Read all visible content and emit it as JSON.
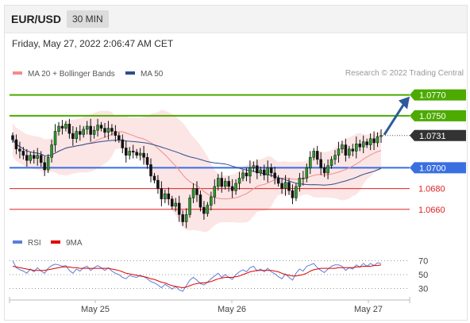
{
  "header": {
    "pair": "EUR/USD",
    "timeframe": "30 MIN"
  },
  "datetime": "Friday, May 27, 2022 2:06:47 AM CET",
  "legend_main": [
    {
      "name": "MA 20 + Bollinger Bands",
      "color": "#f28c8c"
    },
    {
      "name": "MA 50",
      "color": "#2b4f8c"
    }
  ],
  "copyright": "Research © 2022 Trading Central",
  "legend_rsi": [
    {
      "name": "RSI",
      "color": "#5b7fd6"
    },
    {
      "name": "9MA",
      "color": "#e00000"
    }
  ],
  "chart_data": [
    {
      "type": "candlestick",
      "x_tick_labels": [
        "May 25",
        "May 26",
        "May 27"
      ],
      "ylim": [
        1.064,
        1.0785
      ],
      "current_price": {
        "value": 1.0731,
        "label": "1.0731",
        "color": "#333333"
      },
      "levels": [
        {
          "value": 1.077,
          "label": "1.0770",
          "role": "resistance",
          "color": "#4caa00"
        },
        {
          "value": 1.075,
          "label": "1.0750",
          "role": "resistance",
          "color": "#4caa00"
        },
        {
          "value": 1.07,
          "label": "1.0700",
          "role": "pivot",
          "color": "#3a6fe0"
        },
        {
          "value": 1.068,
          "label": "1.0680",
          "role": "support",
          "color": "#e02020"
        },
        {
          "value": 1.066,
          "label": "1.0660",
          "role": "support",
          "color": "#e02020"
        }
      ],
      "forecast_arrow": {
        "from": 1.0731,
        "to": 1.077,
        "color": "#2b5b9c"
      },
      "close": [
        1.0727,
        1.0718,
        1.0716,
        1.0712,
        1.0707,
        1.0712,
        1.0709,
        1.0712,
        1.0705,
        1.0698,
        1.071,
        1.0722,
        1.0735,
        1.074,
        1.0738,
        1.0742,
        1.0733,
        1.0728,
        1.0735,
        1.0732,
        1.0737,
        1.074,
        1.0732,
        1.0736,
        1.0741,
        1.0738,
        1.0734,
        1.0738,
        1.0735,
        1.0731,
        1.0727,
        1.0719,
        1.0712,
        1.0716,
        1.0715,
        1.0712,
        1.0714,
        1.071,
        1.0703,
        1.0692,
        1.0688,
        1.068,
        1.067,
        1.0675,
        1.067,
        1.0663,
        1.0666,
        1.0655,
        1.0648,
        1.0655,
        1.0671,
        1.068,
        1.0674,
        1.0662,
        1.0656,
        1.0664,
        1.0672,
        1.0682,
        1.069,
        1.0682,
        1.0687,
        1.0682,
        1.0678,
        1.0685,
        1.069,
        1.0695,
        1.0692,
        1.07,
        1.0702,
        1.0695,
        1.0698,
        1.0693,
        1.07,
        1.0695,
        1.069,
        1.0685,
        1.068,
        1.0686,
        1.0678,
        1.0671,
        1.0682,
        1.069,
        1.069,
        1.07,
        1.071,
        1.0716,
        1.0708,
        1.07,
        1.0695,
        1.0702,
        1.0708,
        1.0712,
        1.0718,
        1.0722,
        1.0712,
        1.0718,
        1.0716,
        1.0723,
        1.072,
        1.0725,
        1.0722,
        1.0728,
        1.0724,
        1.073,
        1.0731
      ]
    },
    {
      "type": "line",
      "x_tick_labels": [
        "May 25",
        "May 26",
        "May 27"
      ],
      "y_ticks": [
        70,
        50,
        30
      ],
      "ylim": [
        18,
        82
      ],
      "series": [
        {
          "name": "RSI",
          "values": [
            70,
            60,
            57,
            55,
            52,
            58,
            54,
            60,
            55,
            52,
            59,
            63,
            65,
            64,
            62,
            63,
            56,
            52,
            58,
            55,
            60,
            62,
            56,
            60,
            63,
            60,
            56,
            60,
            55,
            52,
            50,
            46,
            44,
            49,
            47,
            46,
            49,
            47,
            44,
            40,
            38,
            35,
            31,
            36,
            33,
            29,
            33,
            28,
            26,
            34,
            42,
            46,
            42,
            37,
            35,
            39,
            44,
            48,
            52,
            46,
            50,
            46,
            43,
            50,
            54,
            57,
            54,
            60,
            62,
            55,
            58,
            54,
            59,
            54,
            51,
            47,
            44,
            51,
            46,
            42,
            52,
            58,
            55,
            62,
            64,
            66,
            60,
            56,
            53,
            58,
            62,
            64,
            64,
            62,
            56,
            60,
            58,
            64,
            61,
            66,
            62,
            66,
            63,
            67,
            66
          ]
        },
        {
          "name": "9MA",
          "values": [
            62,
            61,
            60,
            59,
            58,
            57,
            56,
            56,
            56,
            56,
            57,
            58,
            59,
            60,
            61,
            61,
            61,
            60,
            60,
            59,
            59,
            59,
            59,
            59,
            59,
            59,
            59,
            59,
            58,
            57,
            56,
            54,
            52,
            51,
            50,
            49,
            48,
            47,
            46,
            44,
            43,
            41,
            39,
            38,
            36,
            34,
            33,
            32,
            31,
            32,
            34,
            36,
            37,
            38,
            38,
            39,
            40,
            42,
            44,
            45,
            46,
            46,
            46,
            47,
            48,
            50,
            52,
            54,
            55,
            56,
            56,
            56,
            56,
            56,
            55,
            54,
            52,
            50,
            49,
            48,
            48,
            49,
            50,
            52,
            55,
            57,
            58,
            59,
            59,
            59,
            59,
            59,
            60,
            60,
            60,
            60,
            60,
            61,
            61,
            62,
            62,
            62,
            63,
            63,
            64
          ]
        }
      ]
    }
  ]
}
